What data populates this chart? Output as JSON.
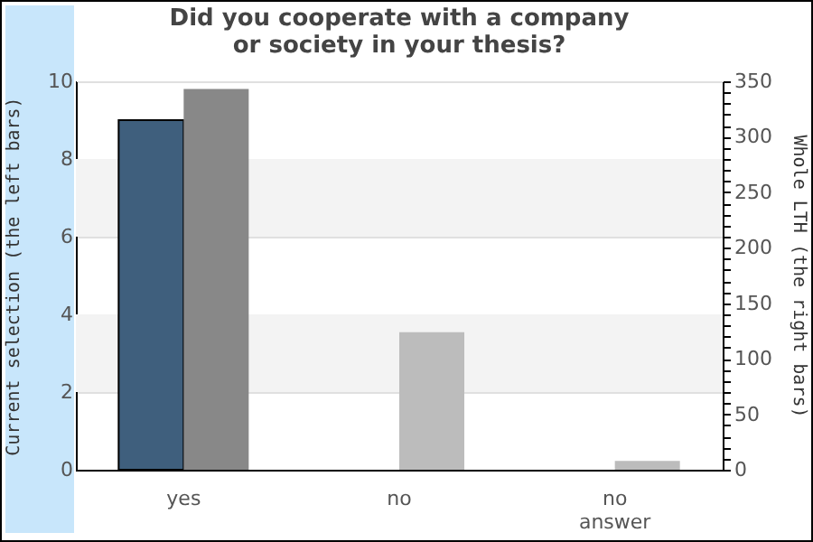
{
  "chart_data": {
    "type": "bar",
    "title": "Did you cooperate with a company\nor society in your thesis?",
    "categories": [
      "yes",
      "no",
      "no answer"
    ],
    "ylabel": "Current selection (the left bars)",
    "y2label": "Whole LTH (the right bars)",
    "series": [
      {
        "values": [
          9,
          0,
          0
        ],
        "colors": [
          "#3f5f7d",
          "#3f5f7d",
          "#3f5f7d"
        ]
      },
      {
        "axis": "y2",
        "values": [
          343,
          124,
          8
        ],
        "colors": [
          "#888888",
          "#bcbcbc",
          "#bcbcbc"
        ]
      }
    ],
    "ylim": [
      0,
      10
    ],
    "yticks": [
      0,
      2,
      4,
      6,
      8,
      10
    ],
    "y2lim": [
      0,
      350
    ],
    "y2ticks": [
      0,
      {
        "value": 10,
        "label": null
      },
      {
        "value": 20,
        "label": null
      },
      {
        "value": 30,
        "label": null
      },
      {
        "value": 40,
        "label": null
      },
      50,
      {
        "value": 60,
        "label": null
      },
      {
        "value": 70,
        "label": null
      },
      {
        "value": 80,
        "label": null
      },
      {
        "value": 90,
        "label": null
      },
      100,
      {
        "value": 110,
        "label": null
      },
      {
        "value": 120,
        "label": null
      },
      {
        "value": 130,
        "label": null
      },
      {
        "value": 140,
        "label": null
      },
      150,
      {
        "value": 160,
        "label": null
      },
      {
        "value": 170,
        "label": null
      },
      {
        "value": 180,
        "label": null
      },
      {
        "value": 190,
        "label": null
      },
      200,
      {
        "value": 210,
        "label": null
      },
      {
        "value": 220,
        "label": null
      },
      {
        "value": 230,
        "label": null
      },
      {
        "value": 240,
        "label": null
      },
      250,
      {
        "value": 260,
        "label": null
      },
      {
        "value": 270,
        "label": null
      },
      {
        "value": 280,
        "label": null
      },
      {
        "value": 290,
        "label": null
      },
      300,
      {
        "value": 310,
        "label": null
      },
      {
        "value": 320,
        "label": null
      },
      {
        "value": 330,
        "label": null
      },
      {
        "value": 340,
        "label": null
      },
      350
    ],
    "grid": "y",
    "bands": [
      {
        "axis": "y",
        "from": 2,
        "to": 4,
        "color": "#f3f3f3"
      },
      {
        "axis": "y",
        "from": 6,
        "to": 8,
        "color": "#f3f3f3"
      }
    ]
  }
}
